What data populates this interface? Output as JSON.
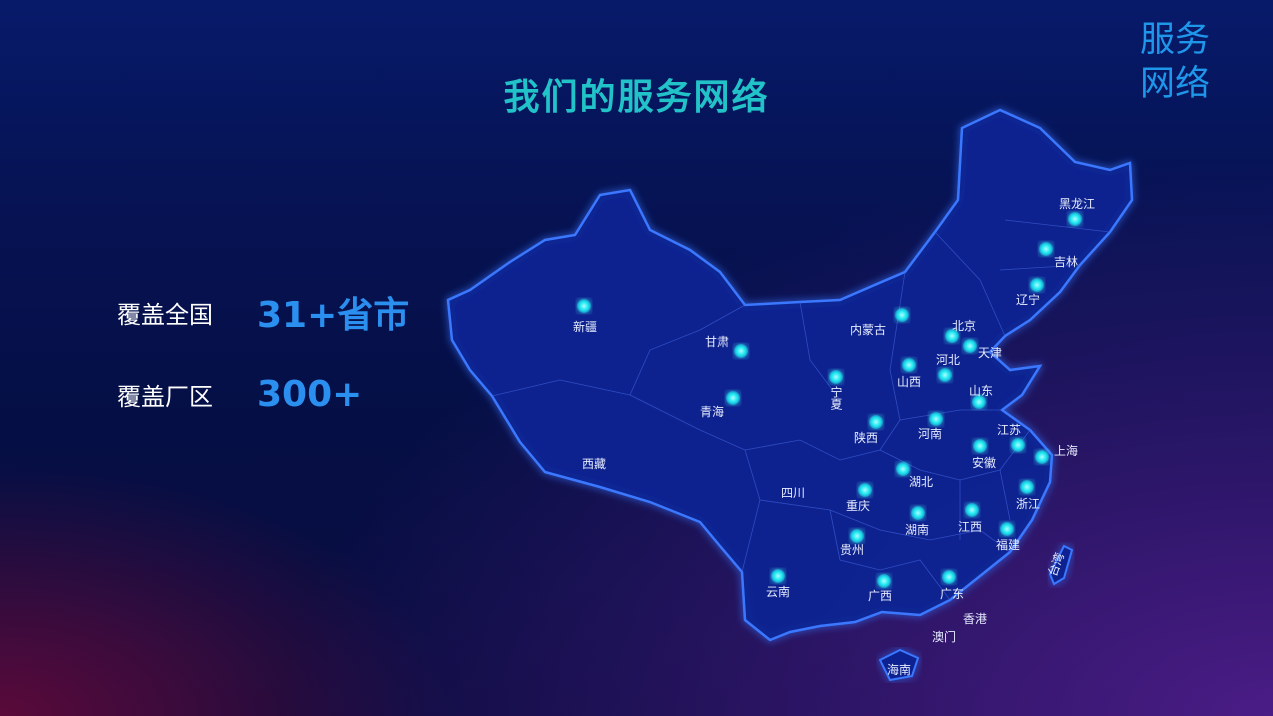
{
  "title": "我们的服务网络",
  "corner_title": [
    "服务",
    "网络"
  ],
  "stats": [
    {
      "label": "覆盖全国",
      "value": "31+省市"
    },
    {
      "label": "覆盖厂区",
      "value": "300+"
    }
  ],
  "colors": {
    "title": "#22c3c8",
    "accent": "#2b8ff0",
    "dot": "#19e6f0",
    "map_fill": "#0b2290",
    "map_border": "#2f6bff"
  },
  "map": {
    "regions": [
      "新疆",
      "甘肃",
      "内蒙古",
      "北京",
      "天津",
      "河北",
      "山西",
      "辽宁",
      "吉林",
      "黑龙江",
      "宁夏",
      "青海",
      "陕西",
      "河南",
      "山东",
      "江苏",
      "上海",
      "安徽",
      "湖北",
      "重庆",
      "四川",
      "西藏",
      "浙江",
      "湖南",
      "江西",
      "福建",
      "贵州",
      "云南",
      "广西",
      "广东",
      "香港",
      "澳门",
      "海南",
      "台湾"
    ],
    "service_points": [
      "新疆",
      "甘肃",
      "内蒙古",
      "北京",
      "天津",
      "河北",
      "山西",
      "辽宁",
      "吉林",
      "黑龙江",
      "宁夏",
      "青海",
      "陕西",
      "河南",
      "山东",
      "江苏",
      "上海",
      "安徽",
      "湖北",
      "重庆",
      "浙江",
      "湖南",
      "江西",
      "福建",
      "贵州",
      "云南",
      "广西",
      "广东"
    ]
  }
}
